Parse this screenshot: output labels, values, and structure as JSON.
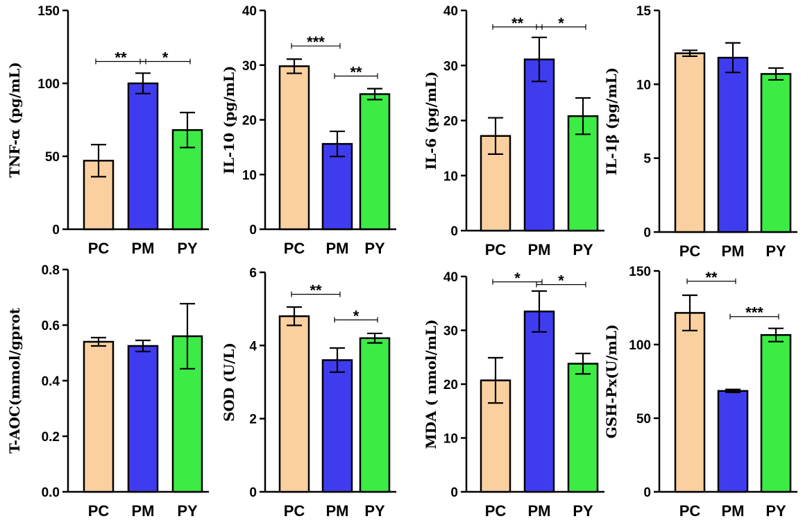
{
  "colors": {
    "PC": "#FAD0A0",
    "PM": "#3F3CF0",
    "PY": "#3CEB46",
    "axis": "#000000"
  },
  "chart_data": [
    {
      "type": "bar",
      "ylabel": "TNF-α (pg/mL)",
      "categories": [
        "PC",
        "PM",
        "PY"
      ],
      "values": [
        47,
        100,
        68
      ],
      "errors": [
        11,
        7,
        12
      ],
      "ylim": [
        0,
        150
      ],
      "yticks": [
        0,
        50,
        100,
        150
      ],
      "yticks_text": [
        "0",
        "50",
        "100",
        "150"
      ],
      "significance": [
        {
          "from": "PC",
          "to": "PM",
          "label": "**",
          "y": 115
        },
        {
          "from": "PM",
          "to": "PY",
          "label": "*",
          "y": 115
        }
      ]
    },
    {
      "type": "bar",
      "ylabel": "IL-10 (pg/mL)",
      "categories": [
        "PC",
        "PM",
        "PY"
      ],
      "values": [
        29.8,
        15.6,
        24.7
      ],
      "errors": [
        1.3,
        2.3,
        1.0
      ],
      "ylim": [
        0,
        40
      ],
      "yticks": [
        0,
        10,
        20,
        30,
        40
      ],
      "yticks_text": [
        "0",
        "10",
        "20",
        "30",
        "40"
      ],
      "significance": [
        {
          "from": "PC",
          "to": "PM",
          "label": "***",
          "y": 33.5
        },
        {
          "from": "PM",
          "to": "PY",
          "label": "**",
          "y": 28
        }
      ]
    },
    {
      "type": "bar",
      "ylabel": "IL-6 (pg/mL)",
      "categories": [
        "PC",
        "PM",
        "PY"
      ],
      "values": [
        17.2,
        31.1,
        20.8
      ],
      "errors": [
        3.3,
        4.0,
        3.3
      ],
      "ylim": [
        0,
        40
      ],
      "yticks": [
        0,
        10,
        20,
        30,
        40
      ],
      "yticks_text": [
        "0",
        "10",
        "20",
        "30",
        "40"
      ],
      "significance": [
        {
          "from": "PC",
          "to": "PM",
          "label": "**",
          "y": 37
        },
        {
          "from": "PM",
          "to": "PY",
          "label": "*",
          "y": 37
        }
      ]
    },
    {
      "type": "bar",
      "ylabel": "IL-1β (pg/mL)",
      "categories": [
        "PC",
        "PM",
        "PY"
      ],
      "values": [
        12.1,
        11.8,
        10.7
      ],
      "errors": [
        0.2,
        1.0,
        0.4
      ],
      "ylim": [
        0,
        15
      ],
      "yticks": [
        0,
        5,
        10,
        15
      ],
      "yticks_text": [
        "0",
        "5",
        "10",
        "15"
      ],
      "significance": []
    },
    {
      "type": "bar",
      "ylabel": "T-AOC(mmol/gprot",
      "categories": [
        "PC",
        "PM",
        "PY"
      ],
      "values": [
        0.54,
        0.525,
        0.56
      ],
      "errors": [
        0.015,
        0.02,
        0.117
      ],
      "ylim": [
        0,
        0.8
      ],
      "yticks": [
        0,
        0.2,
        0.4,
        0.6,
        0.8
      ],
      "yticks_text": [
        "0.0",
        "0.2",
        "0.4",
        "0.6",
        "0.8"
      ],
      "significance": []
    },
    {
      "type": "bar",
      "ylabel": "SOD (U/L)",
      "categories": [
        "PC",
        "PM",
        "PY"
      ],
      "values": [
        4.8,
        3.6,
        4.2
      ],
      "errors": [
        0.25,
        0.33,
        0.13
      ],
      "ylim": [
        0,
        6
      ],
      "yticks": [
        0,
        2,
        4,
        6
      ],
      "yticks_text": [
        "0",
        "2",
        "4",
        "6"
      ],
      "significance": [
        {
          "from": "PC",
          "to": "PM",
          "label": "**",
          "y": 5.4
        },
        {
          "from": "PM",
          "to": "PY",
          "label": "*",
          "y": 4.7
        }
      ]
    },
    {
      "type": "bar",
      "ylabel": "MDA ( nmol/mL)",
      "categories": [
        "PC",
        "PM",
        "PY"
      ],
      "values": [
        20.7,
        33.5,
        23.8
      ],
      "errors": [
        4.2,
        3.8,
        1.9
      ],
      "ylim": [
        0,
        40
      ],
      "yticks": [
        0,
        10,
        20,
        30,
        40
      ],
      "yticks_text": [
        "0",
        "10",
        "20",
        "30",
        "40"
      ],
      "significance": [
        {
          "from": "PC",
          "to": "PM",
          "label": "*",
          "y": 39
        },
        {
          "from": "PM",
          "to": "PY",
          "label": "*",
          "y": 38.5
        }
      ]
    },
    {
      "type": "bar",
      "ylabel": "GSH-Px(U/mL)",
      "categories": [
        "PC",
        "PM",
        "PY"
      ],
      "values": [
        121.5,
        68.5,
        106.5
      ],
      "errors": [
        12,
        1,
        4.5
      ],
      "ylim": [
        0,
        150
      ],
      "yticks": [
        0,
        50,
        100,
        150
      ],
      "yticks_text": [
        "0",
        "50",
        "100",
        "150"
      ],
      "significance": [
        {
          "from": "PC",
          "to": "PM",
          "label": "**",
          "y": 143
        },
        {
          "from": "PM",
          "to": "PY",
          "label": "***",
          "y": 119
        }
      ]
    }
  ]
}
